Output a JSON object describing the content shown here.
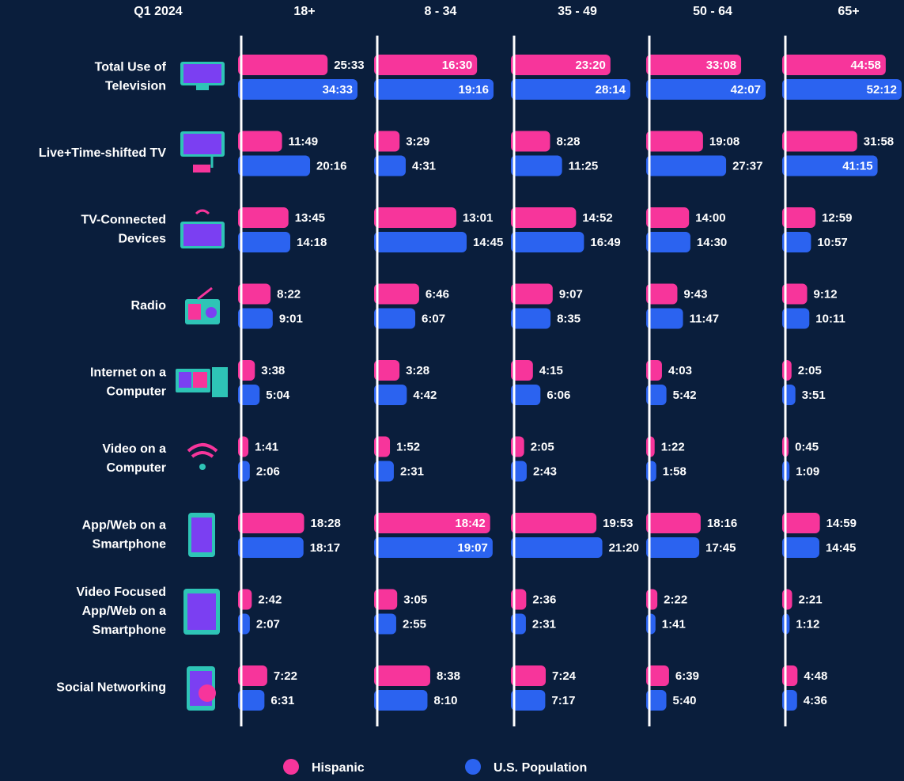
{
  "chart_data": {
    "type": "bar",
    "corner_label": "Q1 2024",
    "categories": [
      "Total Use of\nTelevision",
      "Live+Time-shifted TV",
      "TV-Connected\nDevices",
      "Radio",
      "Internet on a\nComputer",
      "Video on a\nComputer",
      "App/Web on a\nSmartphone",
      "Video Focused\nApp/Web on a\nSmartphone",
      "Social Networking"
    ],
    "series": [
      {
        "name": "Hispanic",
        "color": "#f7359b"
      },
      {
        "name": "U.S. Population",
        "color": "#2b63f0"
      }
    ],
    "panels": [
      {
        "title": "18+",
        "series": [
          {
            "values": [
              1533,
              709,
              825,
              502,
              218,
              101,
              1108,
              162,
              442
            ],
            "value_labels": [
              "25:33",
              "11:49",
              "13:45",
              "8:22",
              "3:38",
              "1:41",
              "18:28",
              "2:42",
              "7:22"
            ]
          },
          {
            "values": [
              2073,
              1216,
              858,
              541,
              304,
              126,
              1097,
              127,
              391
            ],
            "value_labels": [
              "34:33",
              "20:16",
              "14:18",
              "9:01",
              "5:04",
              "2:06",
              "18:17",
              "2:07",
              "6:31"
            ]
          }
        ]
      },
      {
        "title": "8 - 34",
        "series": [
          {
            "values": [
              990,
              209,
              781,
              406,
              208,
              112,
              1122,
              185,
              518
            ],
            "value_labels": [
              "16:30",
              "3:29",
              "13:01",
              "6:46",
              "3:28",
              "1:52",
              "18:42",
              "3:05",
              "8:38"
            ]
          },
          {
            "values": [
              1156,
              271,
              885,
              367,
              282,
              151,
              1147,
              175,
              490
            ],
            "value_labels": [
              "19:16",
              "4:31",
              "14:45",
              "6:07",
              "4:42",
              "2:31",
              "19:07",
              "2:55",
              "8:10"
            ]
          }
        ]
      },
      {
        "title": "35 - 49",
        "series": [
          {
            "values": [
              1400,
              508,
              892,
              547,
              255,
              125,
              1193,
              156,
              444
            ],
            "value_labels": [
              "23:20",
              "8:28",
              "14:52",
              "9:07",
              "4:15",
              "2:05",
              "19:53",
              "2:36",
              "7:24"
            ]
          },
          {
            "values": [
              1694,
              685,
              1009,
              515,
              366,
              163,
              1280,
              151,
              437
            ],
            "value_labels": [
              "28:14",
              "11:25",
              "16:49",
              "8:35",
              "6:06",
              "2:43",
              "21:20",
              "2:31",
              "7:17"
            ]
          }
        ]
      },
      {
        "title": "50 - 64",
        "series": [
          {
            "values": [
              1988,
              1148,
              840,
              583,
              243,
              82,
              1096,
              142,
              399
            ],
            "value_labels": [
              "33:08",
              "19:08",
              "14:00",
              "9:43",
              "4:03",
              "1:22",
              "18:16",
              "2:22",
              "6:39"
            ]
          },
          {
            "values": [
              2527,
              1657,
              870,
              707,
              342,
              118,
              1065,
              101,
              340
            ],
            "value_labels": [
              "42:07",
              "27:37",
              "14:30",
              "11:47",
              "5:42",
              "1:58",
              "17:45",
              "1:41",
              "5:40"
            ]
          }
        ]
      },
      {
        "title": "65+",
        "series": [
          {
            "values": [
              2698,
              1918,
              779,
              552,
              125,
              45,
              899,
              141,
              288
            ],
            "value_labels": [
              "44:58",
              "31:58",
              "12:59",
              "9:12",
              "2:05",
              "0:45",
              "14:59",
              "2:21",
              "4:48"
            ]
          },
          {
            "values": [
              3132,
              2475,
              657,
              611,
              231,
              69,
              885,
              72,
              276
            ],
            "value_labels": [
              "52:12",
              "41:15",
              "10:57",
              "10:11",
              "3:51",
              "1:09",
              "14:45",
              "1:12",
              "4:36"
            ]
          }
        ]
      }
    ]
  }
}
